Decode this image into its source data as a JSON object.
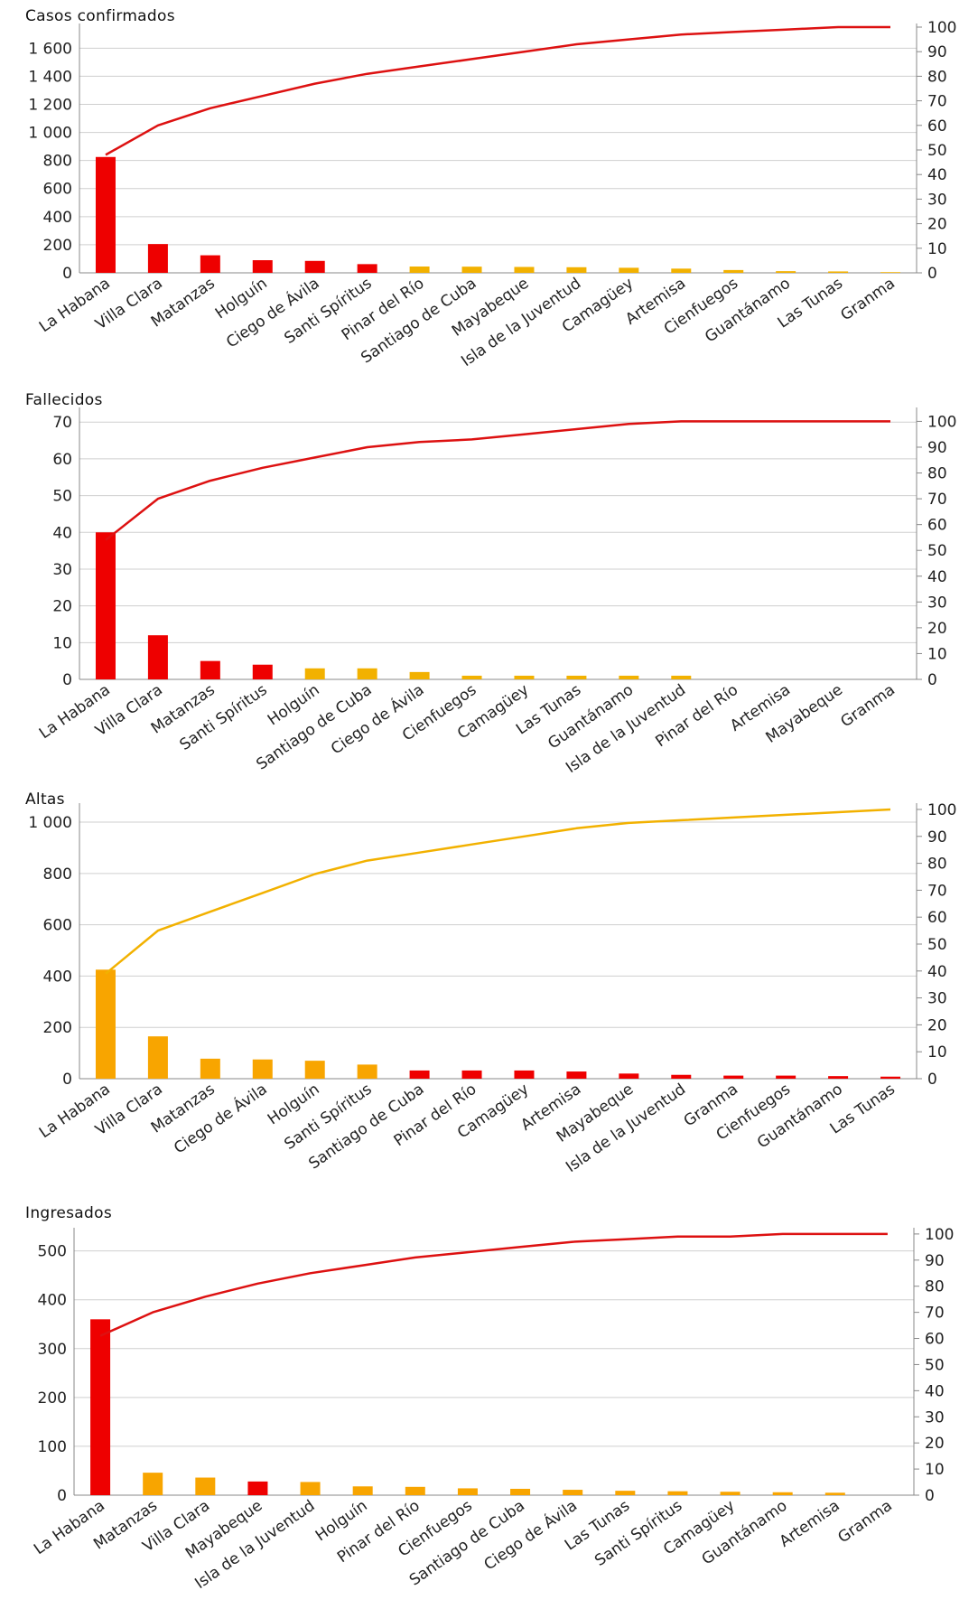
{
  "chart_data": [
    {
      "type": "bar",
      "title": "Casos confirmados",
      "categories": [
        "La Habana",
        "Villa Clara",
        "Matanzas",
        "Holguín",
        "Ciego de Ávila",
        "Santi Spíritus",
        "Pinar del Río",
        "Santiago de Cuba",
        "Mayabeque",
        "Isla de la Juventud",
        "Camagüey",
        "Artemisa",
        "Cienfuegos",
        "Guantánamo",
        "Las Tunas",
        "Granma"
      ],
      "values": [
        825,
        205,
        125,
        90,
        85,
        62,
        45,
        44,
        42,
        40,
        36,
        30,
        20,
        12,
        10,
        5
      ],
      "bar_colors": [
        "#ee0000",
        "#ee0000",
        "#ee0000",
        "#ee0000",
        "#ee0000",
        "#ee0000",
        "#f2b100",
        "#f2b100",
        "#f2b100",
        "#f2b100",
        "#f2b100",
        "#f2b100",
        "#f2b100",
        "#f2b100",
        "#f2b100",
        "#f2b100"
      ],
      "yticks": [
        0,
        200,
        400,
        600,
        800,
        1000,
        1200,
        1400,
        1600
      ],
      "ytick_labels": [
        "0",
        "200",
        "400",
        "600",
        "800",
        "1 000",
        "1 200",
        "1 400",
        "1 600"
      ],
      "ylim": [
        0,
        1750
      ],
      "y2ticks": [
        0,
        10,
        20,
        30,
        40,
        50,
        60,
        70,
        80,
        90,
        100
      ],
      "y2lim": [
        0,
        100
      ],
      "cumulative_line": {
        "color": "#dd1111",
        "values": [
          48,
          60,
          67,
          72,
          77,
          81,
          84,
          87,
          90,
          93,
          95,
          97,
          98,
          99,
          100,
          100
        ]
      }
    },
    {
      "type": "bar",
      "title": "Fallecidos",
      "categories": [
        "La Habana",
        "Villa Clara",
        "Matanzas",
        "Santi Spíritus",
        "Holguín",
        "Santiago de Cuba",
        "Ciego de Ávila",
        "Cienfuegos",
        "Camagüey",
        "Las Tunas",
        "Guantánamo",
        "Isla de la Juventud",
        "Pinar del Río",
        "Artemisa",
        "Mayabeque",
        "Granma"
      ],
      "values": [
        40,
        12,
        5,
        4,
        3,
        3,
        2,
        1,
        1,
        1,
        1,
        1,
        0,
        0,
        0,
        0
      ],
      "bar_colors": [
        "#ee0000",
        "#ee0000",
        "#ee0000",
        "#ee0000",
        "#f2b100",
        "#f2b100",
        "#f2b100",
        "#f2b100",
        "#f2b100",
        "#f2b100",
        "#f2b100",
        "#f2b100",
        "#f2b100",
        "#f2b100",
        "#f2b100",
        "#f2b100"
      ],
      "yticks": [
        0,
        10,
        20,
        30,
        40,
        50,
        60,
        70
      ],
      "ytick_labels": [
        "0",
        "10",
        "20",
        "30",
        "40",
        "50",
        "60",
        "70"
      ],
      "ylim": [
        0,
        73
      ],
      "y2ticks": [
        0,
        10,
        20,
        30,
        40,
        50,
        60,
        70,
        80,
        90,
        100
      ],
      "y2lim": [
        0,
        104
      ],
      "cumulative_line": {
        "color": "#dd1111",
        "values": [
          54,
          70,
          77,
          82,
          86,
          90,
          92,
          93,
          95,
          97,
          99,
          100,
          100,
          100,
          100,
          100
        ]
      }
    },
    {
      "type": "bar",
      "title": "Altas",
      "categories": [
        "La Habana",
        "Villa Clara",
        "Matanzas",
        "Ciego de Ávila",
        "Holguín",
        "Santi Spíritus",
        "Santiago de Cuba",
        "Pinar del Río",
        "Camagüey",
        "Artemisa",
        "Mayabeque",
        "Isla de la Juventud",
        "Granma",
        "Cienfuegos",
        "Guantánamo",
        "Las Tunas"
      ],
      "values": [
        425,
        165,
        78,
        75,
        70,
        55,
        32,
        32,
        32,
        28,
        20,
        15,
        12,
        12,
        10,
        8
      ],
      "bar_colors": [
        "#f8a500",
        "#f8a500",
        "#f8a500",
        "#f8a500",
        "#f8a500",
        "#f8a500",
        "#ee0000",
        "#ee0000",
        "#ee0000",
        "#ee0000",
        "#ee0000",
        "#ee0000",
        "#ee0000",
        "#ee0000",
        "#ee0000",
        "#ee0000"
      ],
      "yticks": [
        0,
        200,
        400,
        600,
        800,
        1000
      ],
      "ytick_labels": [
        "0",
        "200",
        "400",
        "600",
        "800",
        "1 000"
      ],
      "ylim": [
        0,
        1060
      ],
      "y2ticks": [
        0,
        10,
        20,
        30,
        40,
        50,
        60,
        70,
        80,
        90,
        100
      ],
      "y2lim": [
        0,
        101
      ],
      "cumulative_line": {
        "color": "#f2b100",
        "values": [
          39,
          55,
          62,
          69,
          76,
          81,
          84,
          87,
          90,
          93,
          95,
          96,
          97,
          98,
          99,
          100
        ]
      }
    },
    {
      "type": "bar",
      "title": "Ingresados",
      "categories": [
        "La Habana",
        "Matanzas",
        "Villa Clara",
        "Mayabeque",
        "Isla de la Juventud",
        "Holguín",
        "Pinar del Río",
        "Cienfuegos",
        "Santiago de Cuba",
        "Ciego de Ávila",
        "Las Tunas",
        "Santi Spíritus",
        "Camagüey",
        "Guantánamo",
        "Artemisa",
        "Granma"
      ],
      "values": [
        360,
        46,
        36,
        28,
        27,
        18,
        17,
        14,
        13,
        11,
        9,
        8,
        7,
        6,
        5,
        0
      ],
      "bar_colors": [
        "#ee0000",
        "#f8a500",
        "#f8a500",
        "#ee0000",
        "#f8a500",
        "#f8a500",
        "#f8a500",
        "#f8a500",
        "#f8a500",
        "#f8a500",
        "#f8a500",
        "#f8a500",
        "#f8a500",
        "#f8a500",
        "#f8a500",
        "#f8a500"
      ],
      "yticks": [
        0,
        100,
        200,
        300,
        400,
        500
      ],
      "ytick_labels": [
        "0",
        "100",
        "200",
        "300",
        "400",
        "500"
      ],
      "ylim": [
        0,
        540
      ],
      "y2ticks": [
        0,
        10,
        20,
        30,
        40,
        50,
        60,
        70,
        80,
        90,
        100
      ],
      "y2lim": [
        0,
        101
      ],
      "cumulative_line": {
        "color": "#dd1111",
        "values": [
          61,
          70,
          76,
          81,
          85,
          88,
          91,
          93,
          95,
          97,
          98,
          99,
          99,
          100,
          100,
          100
        ]
      }
    }
  ],
  "colors": {
    "gridline": "#cfcfcf",
    "axis": "#888888"
  }
}
